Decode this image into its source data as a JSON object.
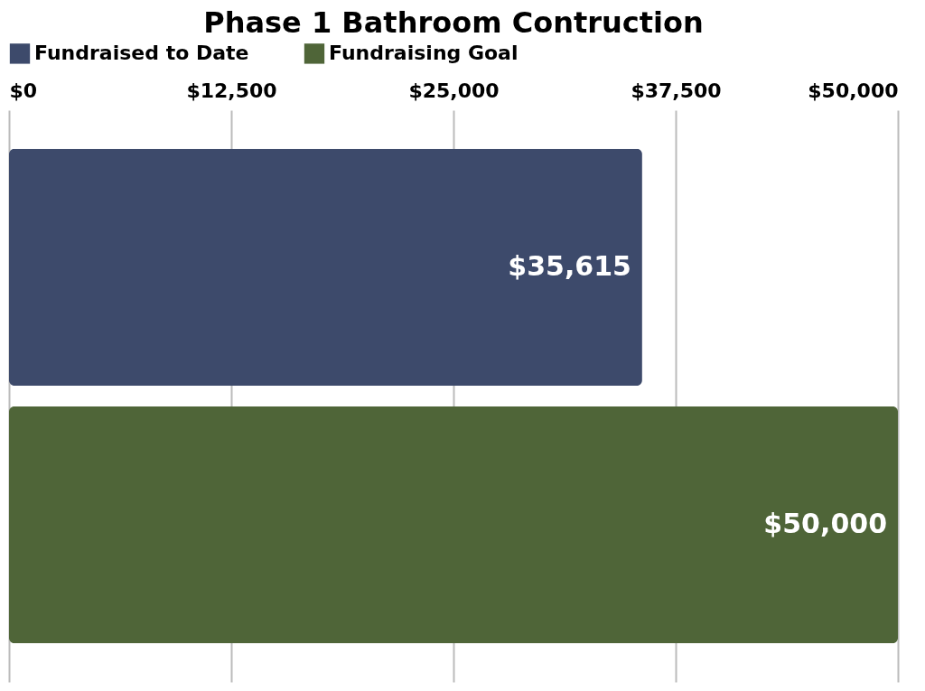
{
  "chart_data": {
    "type": "bar",
    "orientation": "horizontal",
    "title": "Phase 1 Bathroom Contruction",
    "categories": [
      null
    ],
    "series": [
      {
        "name": "Fundraised to Date",
        "color": "#3d4a6b",
        "values": [
          35615
        ],
        "value_labels": [
          "$35,615"
        ]
      },
      {
        "name": "Fundraising Goal",
        "color": "#4f6538",
        "values": [
          50000
        ],
        "value_labels": [
          "$50,000"
        ]
      }
    ],
    "xlim": [
      0,
      50000
    ],
    "xticks": [
      {
        "value": 0,
        "label": "$0"
      },
      {
        "value": 12500,
        "label": "$12,500"
      },
      {
        "value": 25000,
        "label": "$25,000"
      },
      {
        "value": 37500,
        "label": "$37,500"
      },
      {
        "value": 50000,
        "label": "$50,000"
      }
    ],
    "grid": "x",
    "legend": "top"
  }
}
